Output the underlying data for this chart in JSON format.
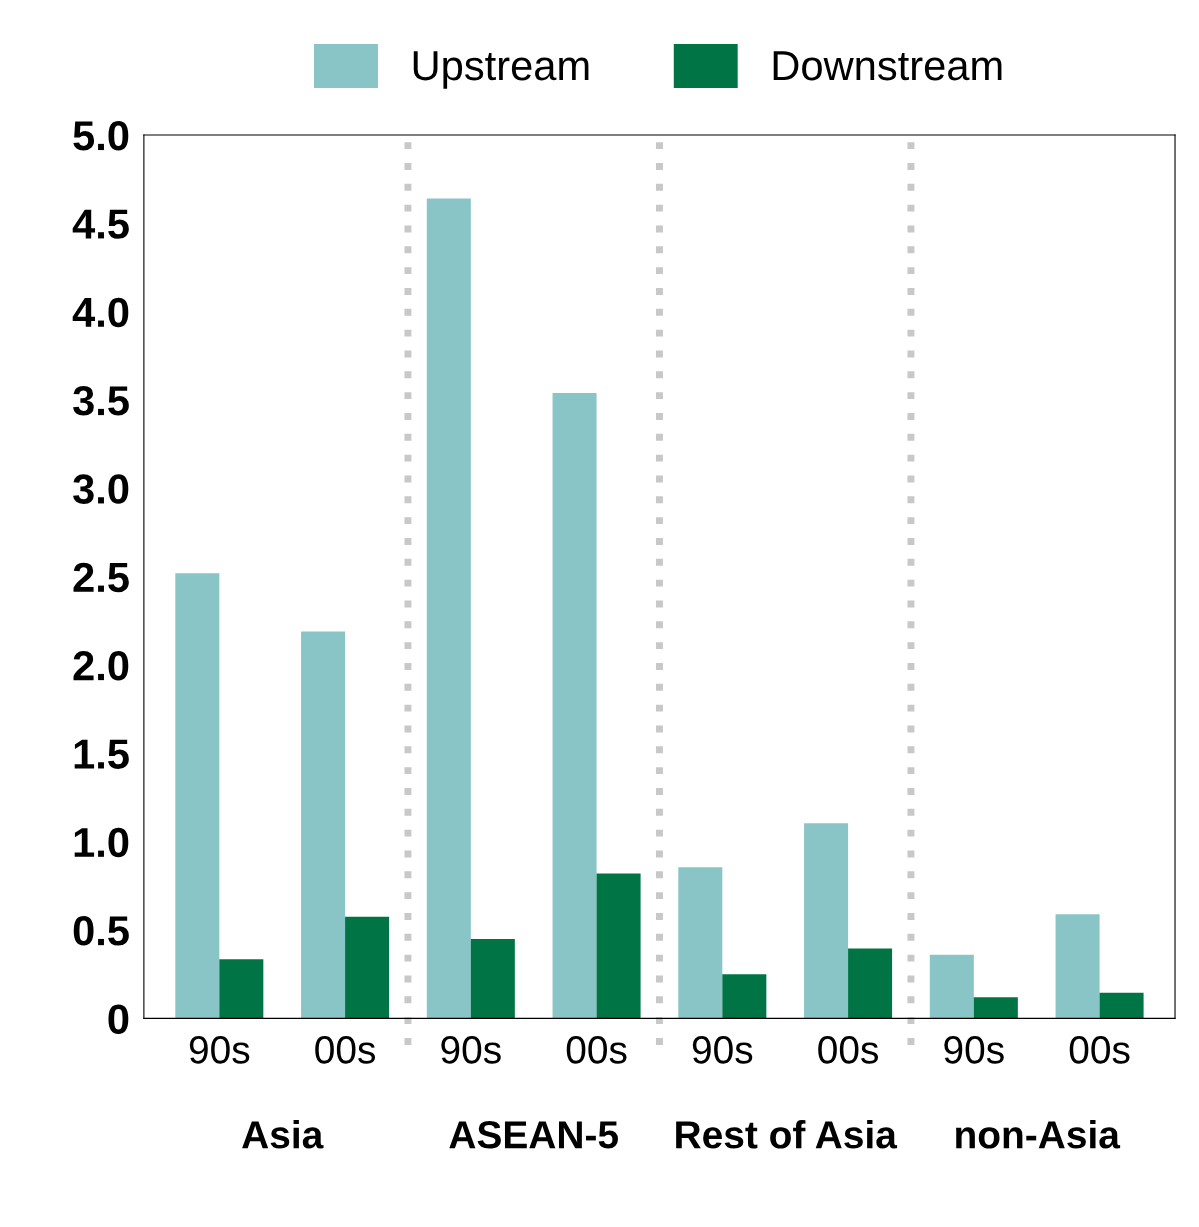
{
  "chart_data": {
    "type": "bar",
    "categories": [
      "90s",
      "00s",
      "90s",
      "00s",
      "90s",
      "00s",
      "90s",
      "00s"
    ],
    "series": [
      {
        "name": "Upstream",
        "color": "#89c4c7",
        "values": [
          2.52,
          2.19,
          4.64,
          3.54,
          0.855,
          1.105,
          0.36,
          0.59
        ]
      },
      {
        "name": "Downstream",
        "color": "#007444",
        "values": [
          0.335,
          0.575,
          0.45,
          0.82,
          0.25,
          0.395,
          0.12,
          0.145
        ]
      }
    ],
    "annotations": [
      "Asia",
      "ASEAN-5",
      "Rest of Asia",
      "non-Asia"
    ],
    "ylim": [
      0,
      5
    ],
    "yticks": [
      0,
      0.5,
      {
        "value": 1,
        "label": "1.0"
      },
      1.5,
      {
        "value": 2,
        "label": "2.0"
      },
      2.5,
      {
        "value": 3,
        "label": "3.0"
      },
      3.5,
      {
        "value": 4,
        "label": "4.0"
      },
      4.5,
      {
        "value": 5,
        "label": "5.0"
      }
    ],
    "grid": false,
    "legend": "top"
  }
}
